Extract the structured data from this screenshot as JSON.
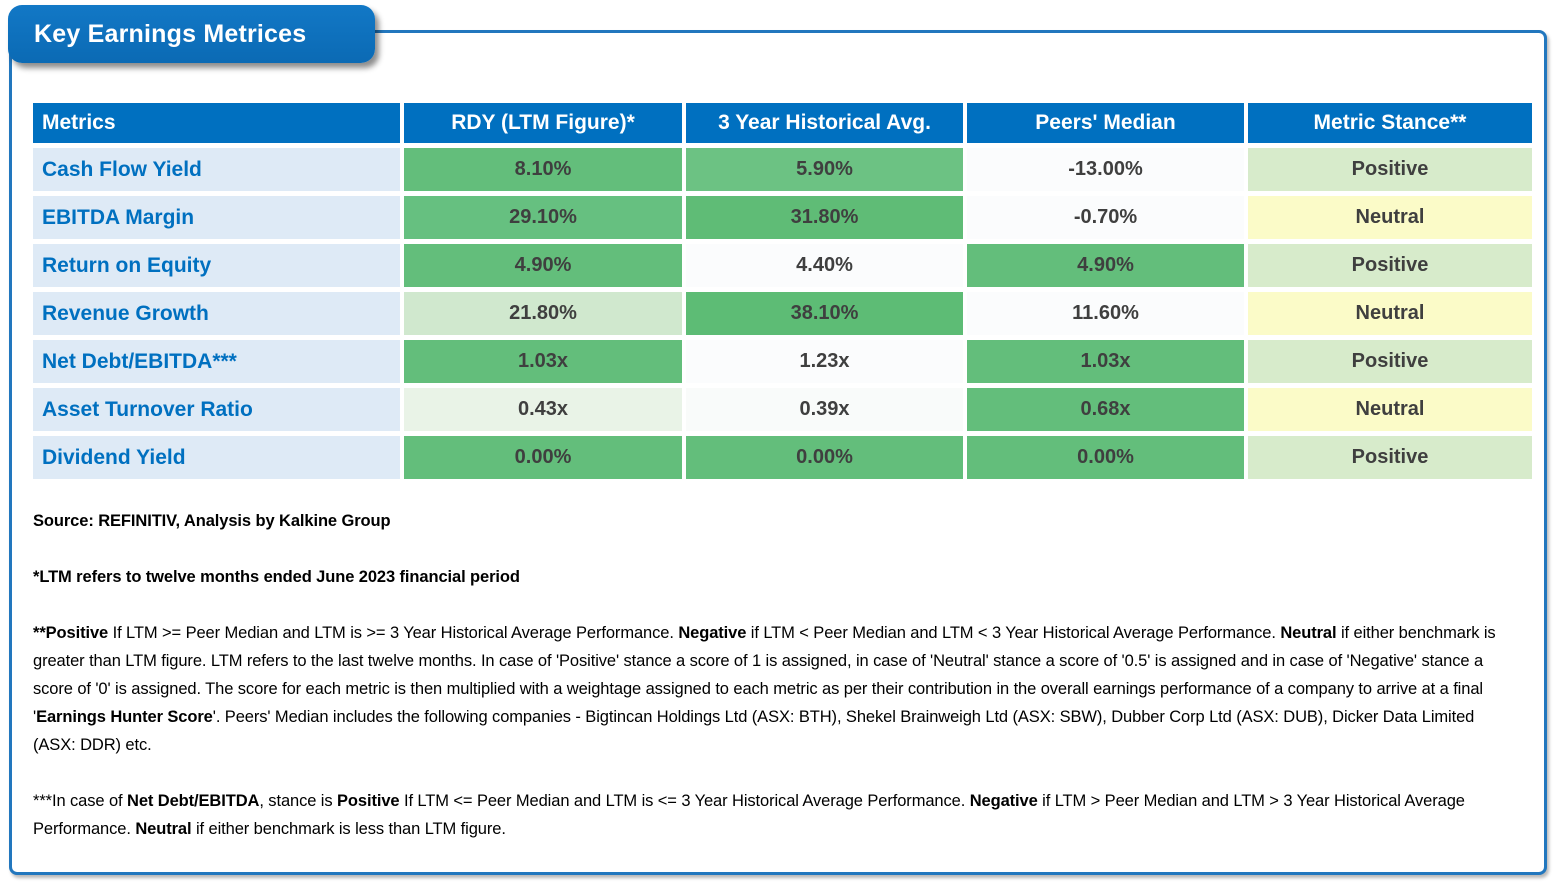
{
  "title": "Key Earnings Metrices",
  "colors": {
    "header_blue": "#0070C0",
    "tab_blue": "#0E71BC",
    "frame_border_blue": "#2277BE",
    "label_bg": "#DEEAF6",
    "label_text": "#0070C0",
    "value_text": "#3F3F3F",
    "green_strong": "#63BE7B",
    "green_light": "#D0E8CE",
    "stance_positive_bg": "#D7EBCB",
    "stance_neutral_bg": "#FBFBC8",
    "near_white_bg": "#FBFCFD"
  },
  "table": {
    "headers": [
      {
        "label": "Metrics"
      },
      {
        "label": "RDY (LTM Figure)*"
      },
      {
        "label": "3 Year Historical Avg."
      },
      {
        "label": "Peers' Median"
      },
      {
        "label": "Metric Stance**"
      }
    ],
    "rows": [
      {
        "metric": "Cash Flow Yield",
        "values": [
          {
            "text": "8.10%",
            "bg": "#63BE7B"
          },
          {
            "text": "5.90%",
            "bg": "#6CC283"
          },
          {
            "text": "-13.00%",
            "bg": "#FBFCFD"
          },
          {
            "text": "Positive",
            "bg": "#D7EBCB"
          }
        ]
      },
      {
        "metric": "EBITDA Margin",
        "values": [
          {
            "text": "29.10%",
            "bg": "#66C080"
          },
          {
            "text": "31.80%",
            "bg": "#5FBC76"
          },
          {
            "text": "-0.70%",
            "bg": "#FBFCFD"
          },
          {
            "text": "Neutral",
            "bg": "#FBFBC8"
          }
        ]
      },
      {
        "metric": "Return on Equity",
        "values": [
          {
            "text": "4.90%",
            "bg": "#63BE7B"
          },
          {
            "text": "4.40%",
            "bg": "#FBFCFD"
          },
          {
            "text": "4.90%",
            "bg": "#63BE7B"
          },
          {
            "text": "Positive",
            "bg": "#D7EBCB"
          }
        ]
      },
      {
        "metric": "Revenue Growth",
        "values": [
          {
            "text": "21.80%",
            "bg": "#D0E8CE"
          },
          {
            "text": "38.10%",
            "bg": "#5DBC75"
          },
          {
            "text": "11.60%",
            "bg": "#FBFCFD"
          },
          {
            "text": "Neutral",
            "bg": "#FBFBC8"
          }
        ]
      },
      {
        "metric": "Net Debt/EBITDA***",
        "values": [
          {
            "text": "1.03x",
            "bg": "#63BE7B"
          },
          {
            "text": "1.23x",
            "bg": "#FBFCFD"
          },
          {
            "text": "1.03x",
            "bg": "#63BE7B"
          },
          {
            "text": "Positive",
            "bg": "#D7EBCB"
          }
        ]
      },
      {
        "metric": "Asset Turnover Ratio",
        "values": [
          {
            "text": "0.43x",
            "bg": "#E9F3E7"
          },
          {
            "text": "0.39x",
            "bg": "#F9FBFA"
          },
          {
            "text": "0.68x",
            "bg": "#63BE7B"
          },
          {
            "text": "Neutral",
            "bg": "#FBFBC8"
          }
        ]
      },
      {
        "metric": "Dividend Yield",
        "values": [
          {
            "text": "0.00%",
            "bg": "#63BE7B"
          },
          {
            "text": "0.00%",
            "bg": "#63BE7B"
          },
          {
            "text": "0.00%",
            "bg": "#63BE7B"
          },
          {
            "text": "Positive",
            "bg": "#D7EBCB"
          }
        ]
      }
    ]
  },
  "notes": {
    "source": "Source: REFINITIV, Analysis by Kalkine Group",
    "ltm": "*LTM refers to twelve months ended June 2023 financial period",
    "stance_note": [
      {
        "t": "**Positive",
        "b": true
      },
      {
        "t": " If LTM >= Peer Median and LTM is >= 3 Year Historical Average Performance. ",
        "b": false
      },
      {
        "t": "Negative",
        "b": true
      },
      {
        "t": " if LTM < Peer Median and LTM < 3 Year Historical Average Performance. ",
        "b": false
      },
      {
        "t": "Neutral",
        "b": true
      },
      {
        "t": " if either benchmark is greater than LTM figure. LTM refers to the last twelve months. In case of 'Positive' stance a score of 1 is assigned, in case of 'Neutral' stance a score of '0.5' is assigned and in case of 'Negative' stance a score of '0' is assigned. The score for each metric is then multiplied with a weightage assigned to each metric as per their contribution in the overall earnings performance of a company to arrive at a final '",
        "b": false
      },
      {
        "t": "Earnings Hunter Score",
        "b": true
      },
      {
        "t": "'. Peers' Median includes the following companies - Bigtincan Holdings Ltd (ASX: BTH), Shekel Brainweigh Ltd (ASX: SBW), Dubber Corp Ltd (ASX: DUB), Dicker Data Limited (ASX: DDR)  etc.",
        "b": false
      }
    ],
    "netdebt_note": [
      {
        "t": "***In case of ",
        "b": false
      },
      {
        "t": "Net Debt/EBITDA",
        "b": true
      },
      {
        "t": ", stance is ",
        "b": false
      },
      {
        "t": "Positive",
        "b": true
      },
      {
        "t": " If LTM <= Peer Median and LTM is <= 3 Year Historical Average Performance. ",
        "b": false
      },
      {
        "t": "Negative",
        "b": true
      },
      {
        "t": " if LTM > Peer Median and LTM > 3 Year Historical Average Performance. ",
        "b": false
      },
      {
        "t": "Neutral",
        "b": true
      },
      {
        "t": " if either benchmark is less than LTM figure.",
        "b": false
      }
    ]
  }
}
